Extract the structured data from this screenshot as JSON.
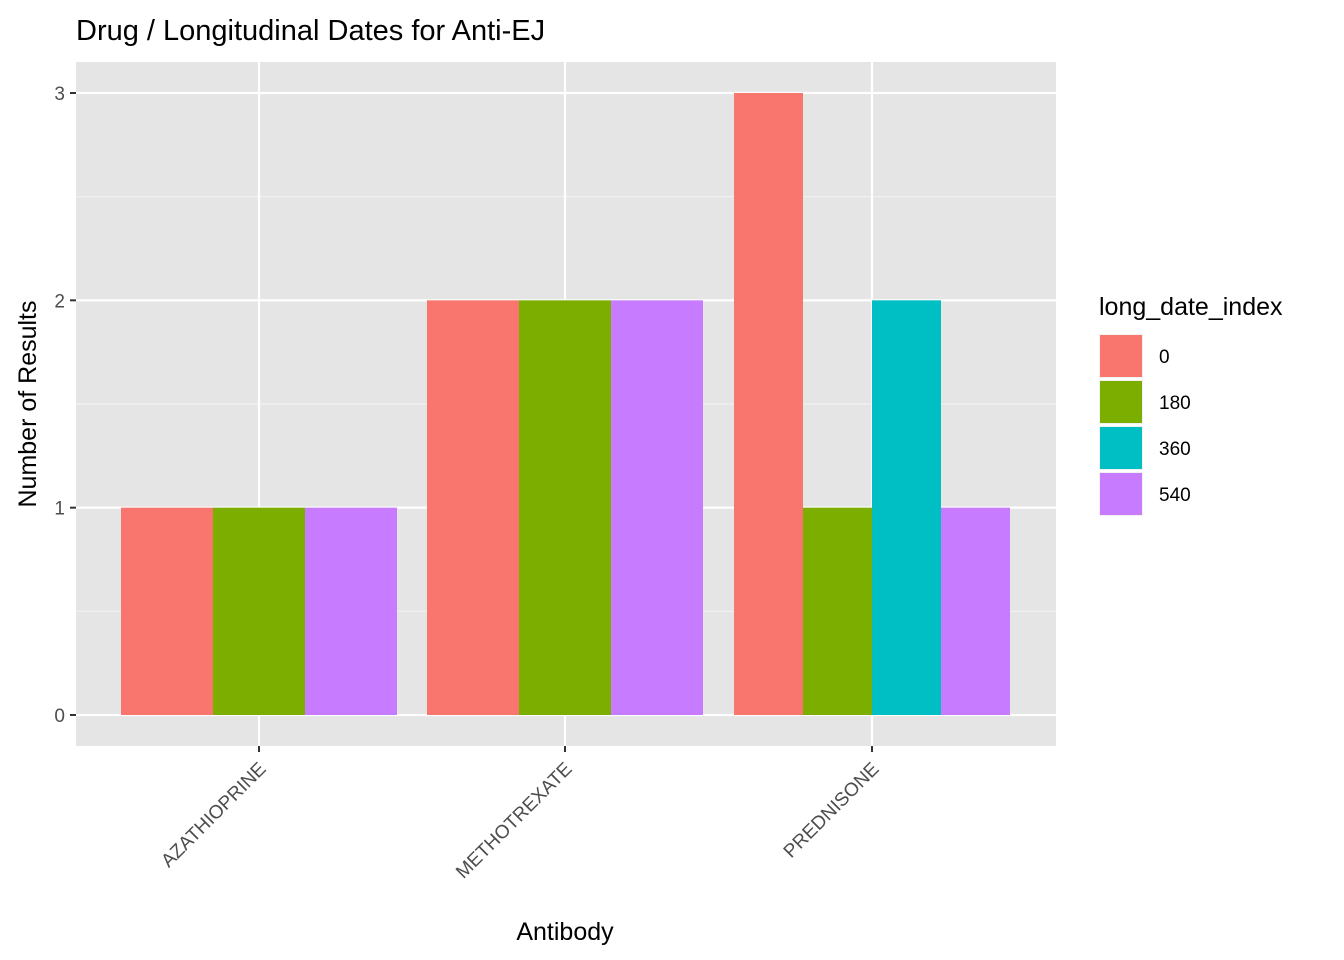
{
  "chart_data": {
    "type": "bar",
    "title": "Drug / Longitudinal Dates for Anti-EJ",
    "xlabel": "Antibody",
    "ylabel": "Number of Results",
    "categories": [
      "AZATHIOPRINE",
      "METHOTREXATE",
      "PREDNISONE"
    ],
    "ylim": [
      0,
      3
    ],
    "yticks": [
      "0",
      "1",
      "2",
      "3"
    ],
    "grid": true,
    "legend": {
      "title": "long_date_index",
      "placement": "right",
      "entries": [
        "0",
        "180",
        "360",
        "540"
      ]
    },
    "series": [
      {
        "name": "0",
        "color": "#F8766D",
        "values": [
          1,
          2,
          3
        ]
      },
      {
        "name": "180",
        "color": "#7CAE00",
        "values": [
          1,
          2,
          1
        ]
      },
      {
        "name": "360",
        "color": "#00BFC4",
        "values": [
          null,
          null,
          2
        ]
      },
      {
        "name": "540",
        "color": "#C77CFF",
        "values": [
          1,
          2,
          1
        ]
      }
    ],
    "panel_background": "#E5E5E5"
  }
}
